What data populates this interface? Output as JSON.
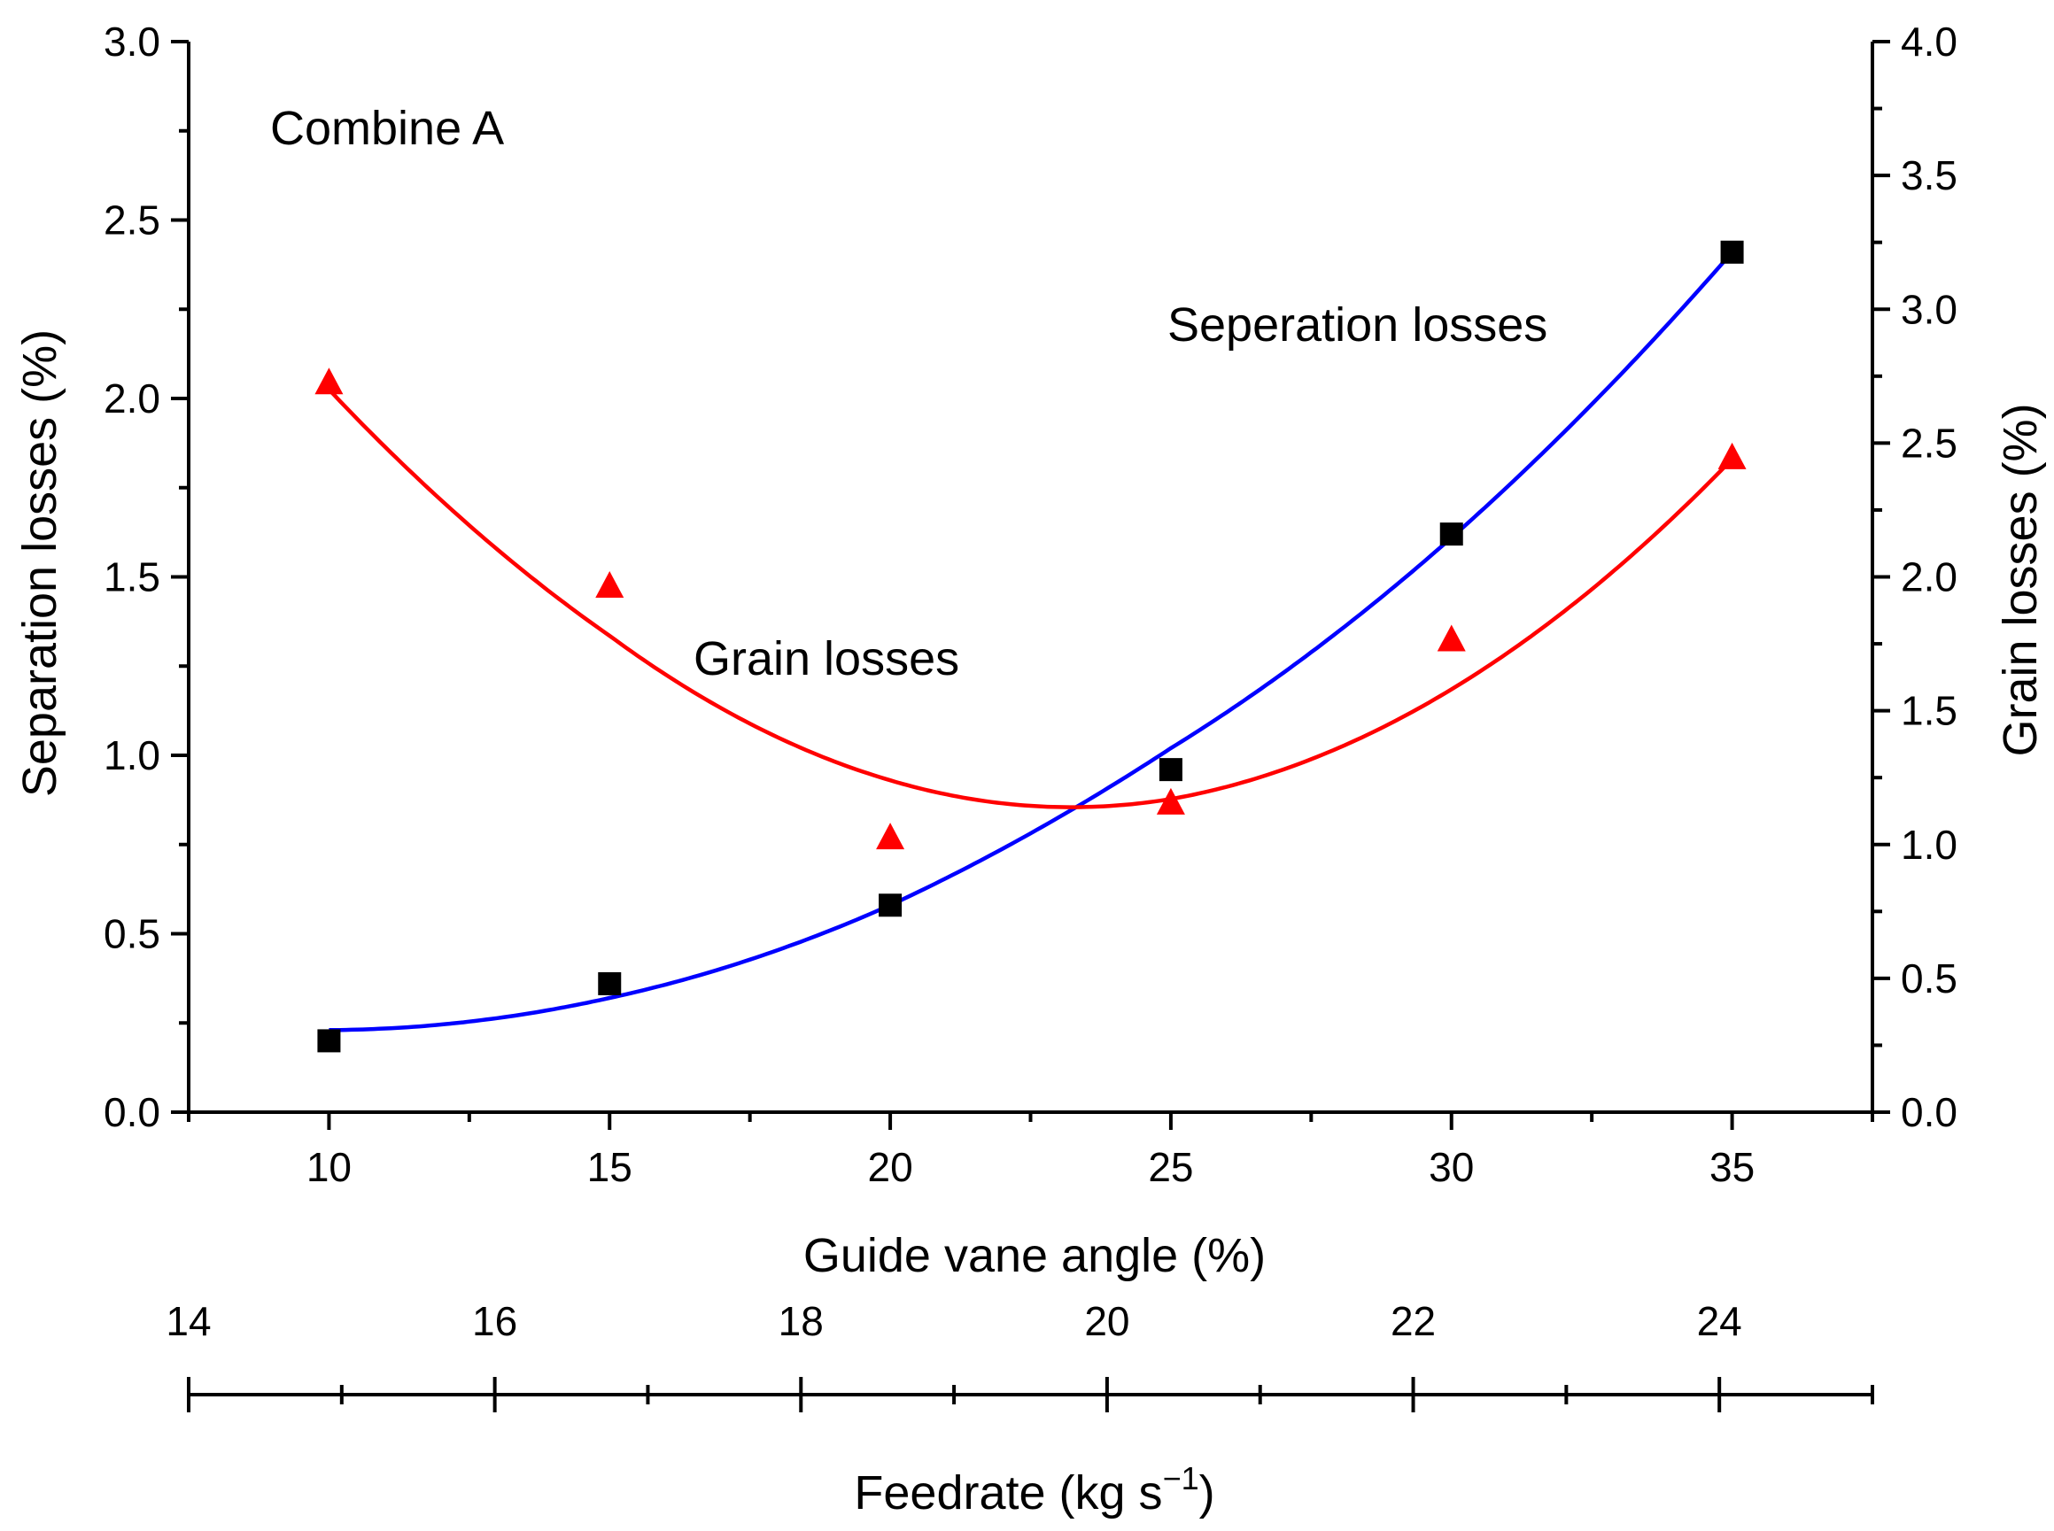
{
  "chart_data": {
    "type": "scatter",
    "title": "",
    "annotations": {
      "panel_label": "Combine A",
      "separation_curve_label": "Seperation losses",
      "grain_curve_label": "Grain losses"
    },
    "x_axis": {
      "label": "Guide vane angle (%)",
      "xlim": [
        7.5,
        37.5
      ],
      "ticks": [
        10,
        15,
        20,
        25,
        30,
        35
      ],
      "tick_labels": [
        "10",
        "15",
        "20",
        "25",
        "30",
        "35"
      ]
    },
    "x2_axis": {
      "label_main": "Feedrate (kg s",
      "label_exp": "−1",
      "label_end": ")",
      "xlim": [
        14,
        25
      ],
      "ticks": [
        14,
        16,
        18,
        20,
        22,
        24
      ],
      "tick_labels": [
        "14",
        "16",
        "18",
        "20",
        "22",
        "24"
      ],
      "minor_ticks": [
        15,
        17,
        19,
        21,
        23,
        25
      ]
    },
    "y_axis": {
      "label": "Separation losses (%)",
      "ylim": [
        0,
        3.0
      ],
      "ticks": [
        0,
        0.5,
        1.0,
        1.5,
        2.0,
        2.5,
        3.0
      ],
      "tick_labels": [
        "0.0",
        "0.5",
        "1.0",
        "1.5",
        "2.0",
        "2.5",
        "3.0"
      ]
    },
    "y2_axis": {
      "label": "Grain losses (%)",
      "ylim": [
        0,
        4.0
      ],
      "ticks": [
        0,
        0.5,
        1.0,
        1.5,
        2.0,
        2.5,
        3.0,
        3.5,
        4.0
      ],
      "tick_labels": [
        "0.0",
        "0.5",
        "1.0",
        "1.5",
        "2.0",
        "2.5",
        "3.0",
        "3.5",
        "4.0"
      ]
    },
    "series": [
      {
        "name": "Separation losses",
        "axis": "left",
        "marker": "square",
        "color": "#000000",
        "fit_color": "#0000ff",
        "x": [
          10,
          15,
          20,
          25,
          30,
          35
        ],
        "y": [
          0.2,
          0.36,
          0.58,
          0.96,
          1.62,
          2.41
        ],
        "fit_points": [
          [
            10,
            0.23
          ],
          [
            15,
            0.32
          ],
          [
            20,
            0.58
          ],
          [
            25,
            1.02
          ],
          [
            30,
            1.61
          ],
          [
            35,
            2.41
          ]
        ]
      },
      {
        "name": "Grain losses",
        "axis": "right",
        "marker": "triangle",
        "color": "#ff0000",
        "fit_color": "#ff0000",
        "x": [
          10,
          15,
          20,
          25,
          30,
          35
        ],
        "y": [
          2.72,
          1.96,
          1.02,
          1.15,
          1.76,
          2.44
        ],
        "fit_points": [
          [
            10,
            2.7
          ],
          [
            15,
            1.78
          ],
          [
            20,
            1.24
          ],
          [
            23,
            1.14
          ],
          [
            25,
            1.17
          ],
          [
            30,
            1.58
          ],
          [
            35,
            2.44
          ]
        ]
      }
    ]
  }
}
